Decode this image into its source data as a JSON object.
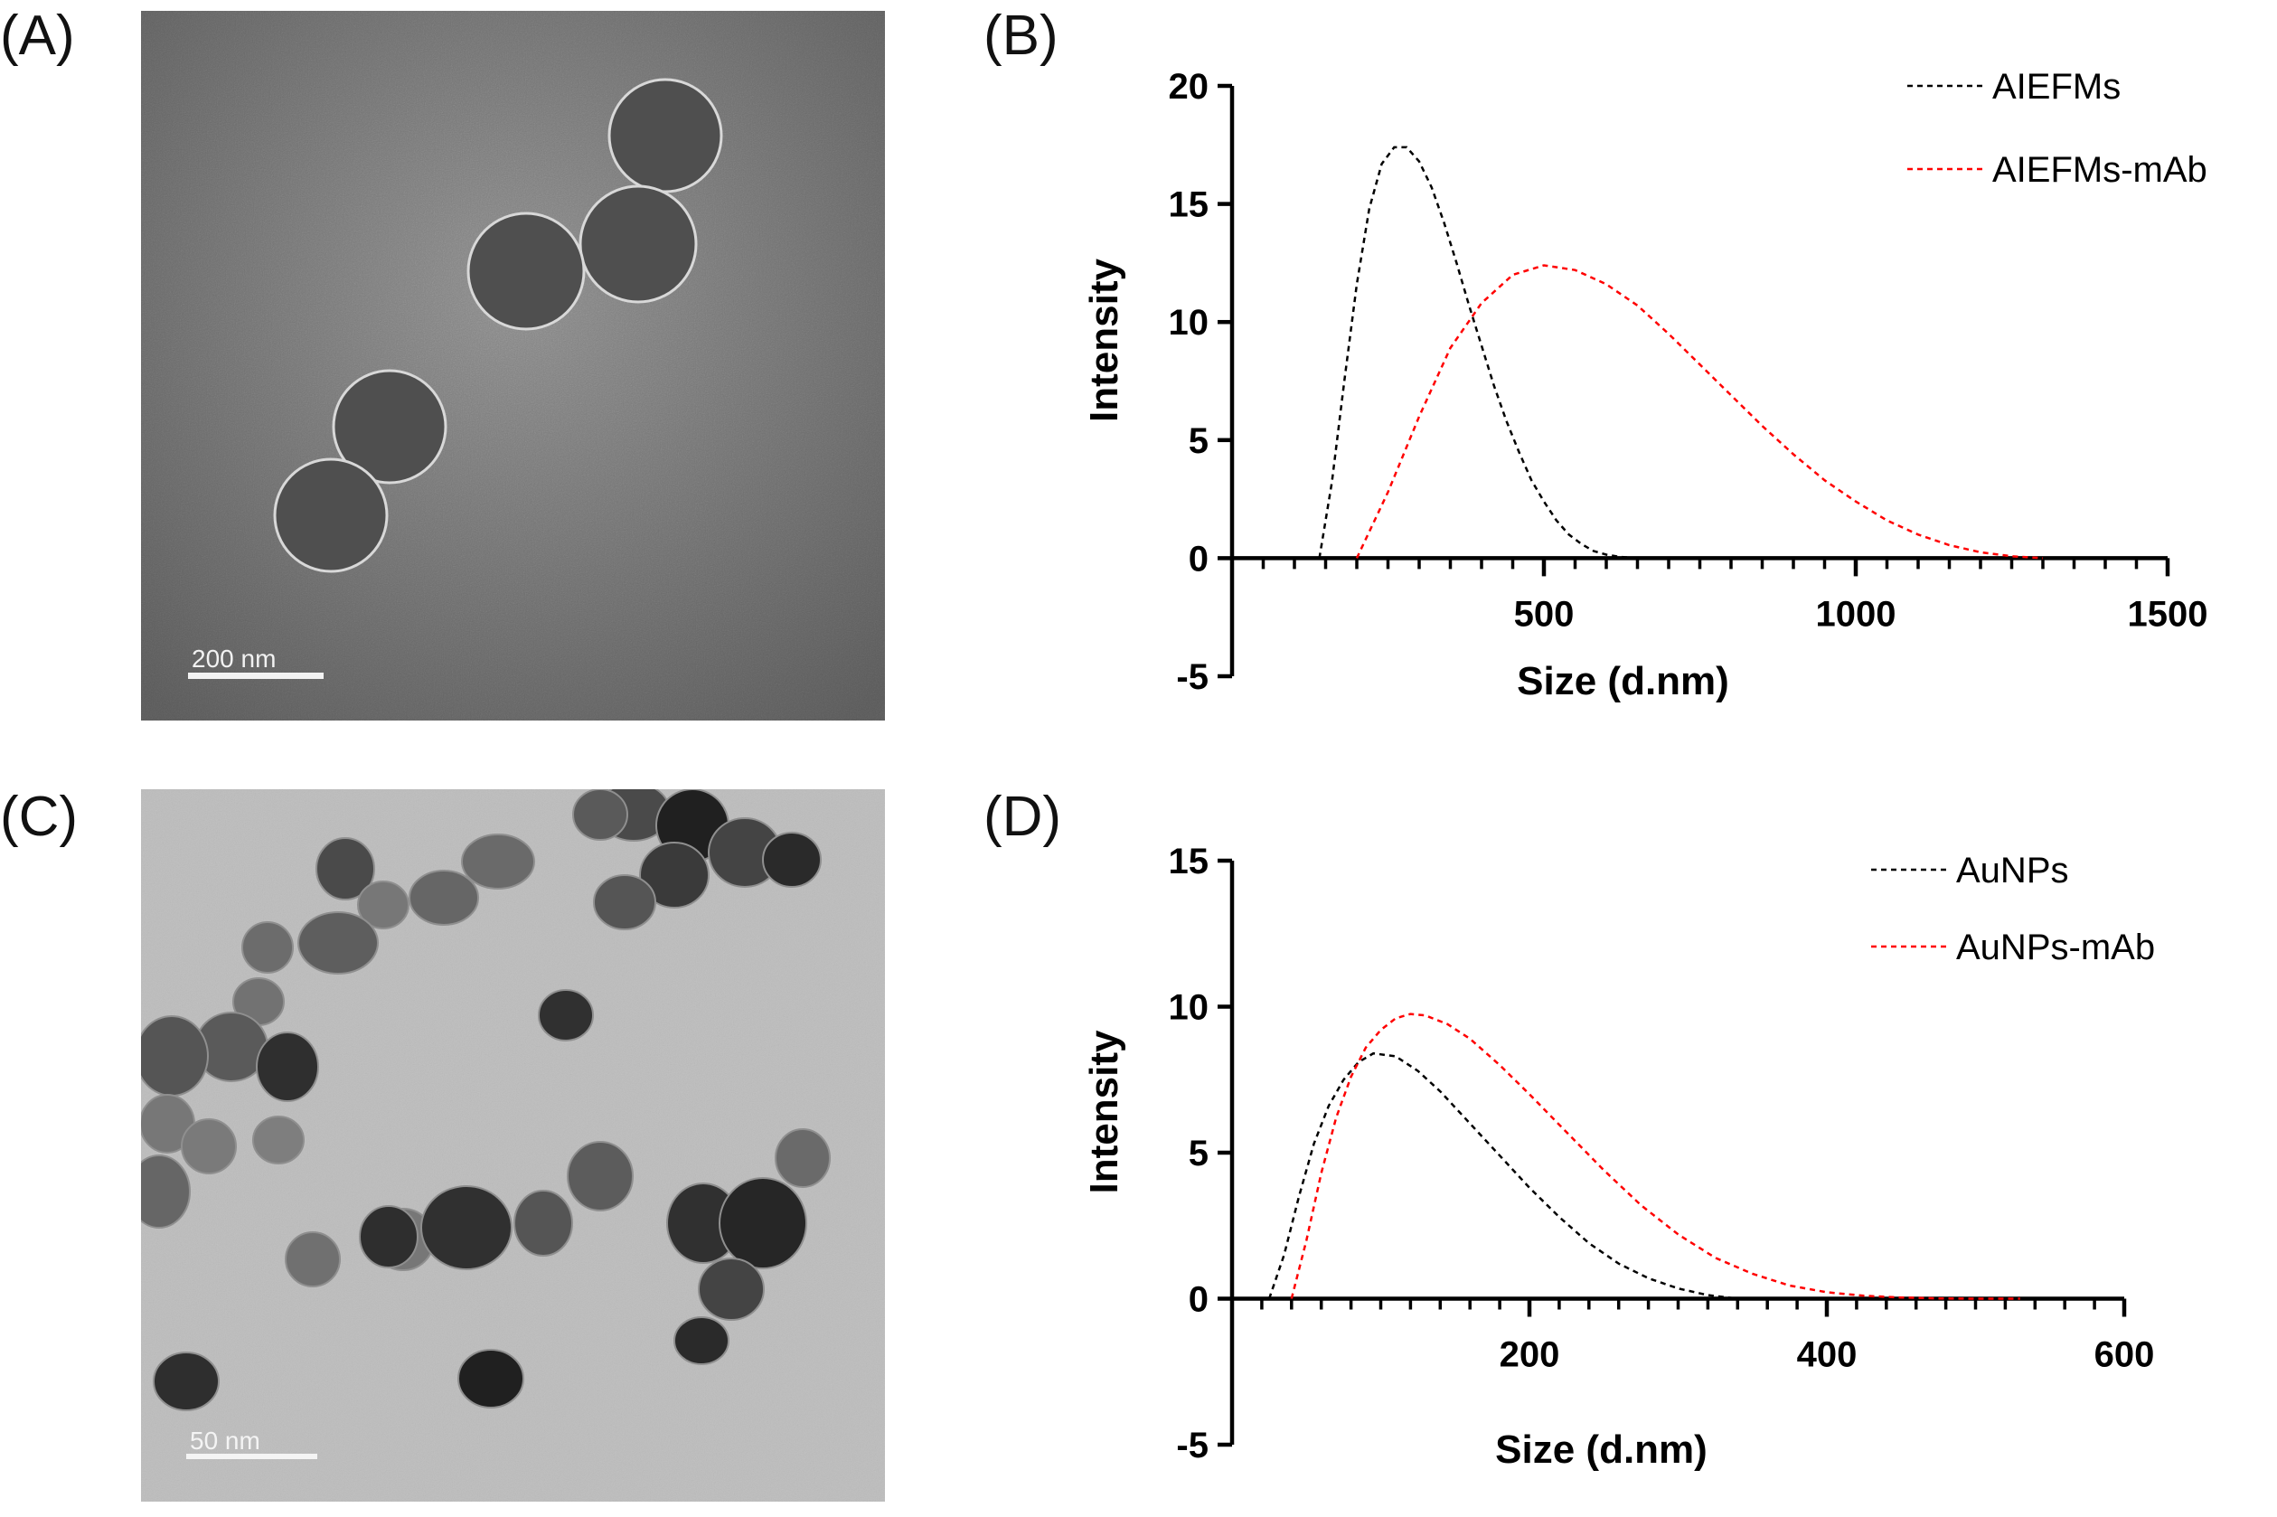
{
  "panels": {
    "A": "(A)",
    "B": "(B)",
    "C": "(C)",
    "D": "(D)"
  },
  "micrographs": {
    "A": {
      "scale_bar": "200 nm"
    },
    "C": {
      "scale_bar": "50 nm"
    }
  },
  "chart_data": [
    {
      "type": "line",
      "panel": "B",
      "xlabel": "Size (d.nm)",
      "ylabel": "Intensity",
      "xlim": [
        0,
        1500
      ],
      "ylim": [
        -5,
        20
      ],
      "xticks": [
        500,
        1000,
        1500
      ],
      "yticks": [
        -5,
        0,
        5,
        10,
        15,
        20
      ],
      "x_minor_step": 50,
      "legend_position": "top-right",
      "series": [
        {
          "name": "AIEFMs",
          "color": "#000000",
          "style": "dotted",
          "x": [
            140,
            160,
            180,
            200,
            220,
            240,
            260,
            280,
            300,
            320,
            340,
            360,
            380,
            400,
            420,
            440,
            460,
            480,
            500,
            520,
            540,
            560,
            580,
            600,
            620,
            640,
            660
          ],
          "y": [
            0,
            3.2,
            7.5,
            11.6,
            14.8,
            16.7,
            17.4,
            17.4,
            16.8,
            15.7,
            14.2,
            12.5,
            10.7,
            9.0,
            7.3,
            5.8,
            4.5,
            3.3,
            2.4,
            1.6,
            1.0,
            0.6,
            0.3,
            0.15,
            0.06,
            0.02,
            0
          ]
        },
        {
          "name": "AIEFMs-mAb",
          "color": "#ff0000",
          "style": "dotted",
          "x": [
            200,
            250,
            300,
            350,
            400,
            450,
            500,
            550,
            600,
            650,
            700,
            750,
            800,
            850,
            900,
            950,
            1000,
            1050,
            1100,
            1150,
            1200,
            1250,
            1300
          ],
          "y": [
            0,
            2.8,
            6.0,
            8.9,
            10.8,
            12.0,
            12.4,
            12.2,
            11.6,
            10.7,
            9.5,
            8.2,
            6.9,
            5.6,
            4.4,
            3.3,
            2.4,
            1.6,
            1.0,
            0.55,
            0.25,
            0.08,
            0
          ]
        }
      ]
    },
    {
      "type": "line",
      "panel": "D",
      "xlabel": "Size (d.nm)",
      "ylabel": "Intensity",
      "xlim": [
        0,
        600
      ],
      "ylim": [
        -5,
        15
      ],
      "xticks": [
        200,
        400,
        600
      ],
      "yticks": [
        -5,
        0,
        5,
        10,
        15
      ],
      "x_minor_step": 20,
      "legend_position": "top-right",
      "series": [
        {
          "name": "AuNPs",
          "color": "#000000",
          "style": "dotted",
          "x": [
            25,
            35,
            45,
            55,
            65,
            75,
            85,
            95,
            110,
            125,
            140,
            160,
            180,
            200,
            220,
            240,
            260,
            280,
            300,
            320,
            340
          ],
          "y": [
            0,
            1.5,
            3.5,
            5.3,
            6.6,
            7.5,
            8.1,
            8.4,
            8.3,
            7.8,
            7.1,
            6.0,
            4.9,
            3.8,
            2.8,
            1.9,
            1.2,
            0.7,
            0.35,
            0.12,
            0
          ]
        },
        {
          "name": "AuNPs-mAb",
          "color": "#ff0000",
          "style": "dotted",
          "x": [
            40,
            50,
            60,
            70,
            80,
            90,
            100,
            110,
            120,
            130,
            145,
            160,
            180,
            200,
            225,
            250,
            275,
            300,
            325,
            350,
            375,
            400,
            425,
            450,
            475,
            500,
            530
          ],
          "y": [
            0,
            2.0,
            4.3,
            6.2,
            7.6,
            8.6,
            9.2,
            9.6,
            9.75,
            9.7,
            9.4,
            8.9,
            8.0,
            7.0,
            5.7,
            4.4,
            3.2,
            2.2,
            1.4,
            0.85,
            0.45,
            0.22,
            0.1,
            0.04,
            0.01,
            0,
            0
          ]
        }
      ]
    }
  ]
}
